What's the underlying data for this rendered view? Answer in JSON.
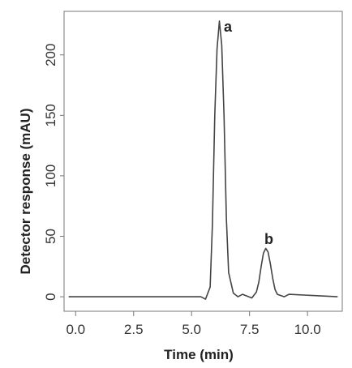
{
  "chart_data": {
    "type": "line",
    "title": "",
    "xlabel": "Time (min)",
    "ylabel": "Detector response (mAU)",
    "xlim": [
      -0.5,
      11.5
    ],
    "ylim": [
      -12,
      236
    ],
    "x_ticks": [
      0.0,
      2.5,
      5.0,
      7.5,
      10.0
    ],
    "x_tick_labels": [
      "0.0",
      "2.5",
      "5.0",
      "7.5",
      "10.0"
    ],
    "y_ticks": [
      0,
      50,
      100,
      150,
      200
    ],
    "y_tick_labels": [
      "0",
      "50",
      "100",
      "150",
      "200"
    ],
    "grid": false,
    "legend": "none",
    "peaks": [
      {
        "label": "a",
        "retention_time": 6.2,
        "height": 228
      },
      {
        "label": "b",
        "retention_time": 8.2,
        "height": 40
      }
    ],
    "series": [
      {
        "x": [
          -0.3,
          5.4,
          5.6,
          5.8,
          5.9,
          6.0,
          6.1,
          6.2,
          6.3,
          6.4,
          6.5,
          6.6,
          6.8,
          7.0,
          7.2,
          7.6,
          7.8,
          7.9,
          8.0,
          8.1,
          8.2,
          8.3,
          8.4,
          8.5,
          8.6,
          8.7,
          9.0,
          9.2,
          11.3
        ],
        "y": [
          0,
          0,
          -2,
          8,
          60,
          150,
          205,
          228,
          208,
          150,
          65,
          20,
          3,
          0,
          2,
          -1,
          4,
          12,
          25,
          36,
          40,
          37,
          27,
          15,
          6,
          2,
          0,
          2,
          0
        ]
      }
    ],
    "line_color": "#444444",
    "peak_labels": [
      "a",
      "b"
    ]
  }
}
